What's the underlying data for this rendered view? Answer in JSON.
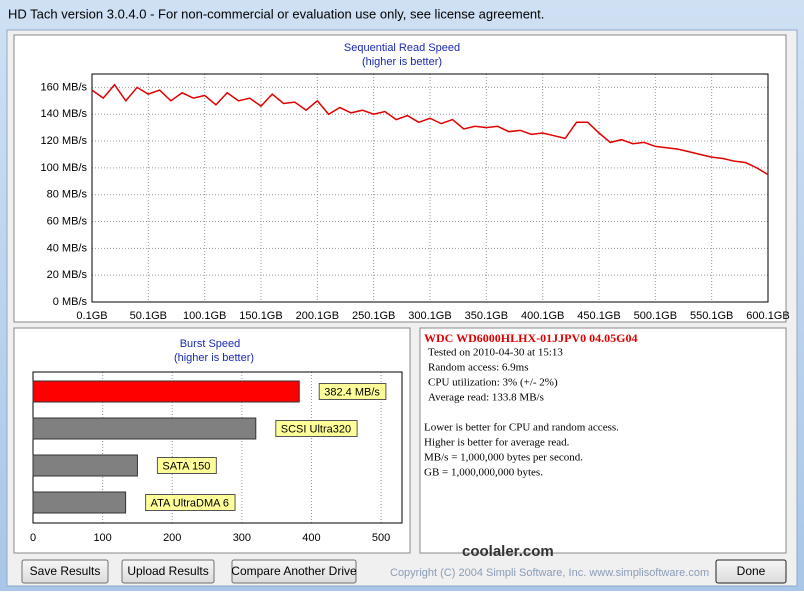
{
  "window": {
    "title": "HD Tach version 3.0.4.0  - For non-commercial or evaluation use only, see license agreement."
  },
  "chart_data": [
    {
      "type": "line",
      "title": "Sequential Read Speed",
      "subtitle": "(higher is better)",
      "x": [
        0.1,
        10.1,
        20.1,
        30.1,
        40.1,
        50.1,
        60.1,
        70.1,
        80.1,
        90.1,
        100.1,
        110.1,
        120.1,
        130.1,
        140.1,
        150.1,
        160.1,
        170.1,
        180.1,
        190.1,
        200.1,
        210.1,
        220.1,
        230.1,
        240.1,
        250.1,
        260.1,
        270.1,
        280.1,
        290.1,
        300.1,
        310.1,
        320.1,
        330.1,
        340.1,
        350.1,
        360.1,
        370.1,
        380.1,
        390.1,
        400.1,
        410.1,
        420.1,
        430.1,
        440.1,
        450.1,
        460.1,
        470.1,
        480.1,
        490.1,
        500.1,
        510.1,
        520.1,
        530.1,
        540.1,
        550.1,
        560.1,
        570.1,
        580.1,
        590.1,
        600.1
      ],
      "series": [
        {
          "color": "#e00000",
          "values": [
            158,
            152,
            162,
            150,
            160,
            155,
            158,
            150,
            156,
            152,
            154,
            147,
            156,
            150,
            152,
            146,
            155,
            148,
            149,
            143,
            150,
            140,
            145,
            141,
            143,
            140,
            142,
            136,
            139,
            134,
            137,
            133,
            136,
            129,
            131,
            130,
            131,
            127,
            128,
            125,
            126,
            124,
            122,
            134,
            134,
            126,
            119,
            121,
            118,
            119,
            116,
            115,
            114,
            112,
            110,
            108,
            107,
            105,
            104,
            100,
            95
          ]
        }
      ],
      "xlim": [
        0.1,
        600.1
      ],
      "xticks": [
        {
          "value": 0.1,
          "label": "0.1GB"
        },
        {
          "value": 50.1,
          "label": "50.1GB"
        },
        {
          "value": 100.1,
          "label": "100.1GB"
        },
        {
          "value": 150.1,
          "label": "150.1GB"
        },
        {
          "value": 200.1,
          "label": "200.1GB"
        },
        {
          "value": 250.1,
          "label": "250.1GB"
        },
        {
          "value": 300.1,
          "label": "300.1GB"
        },
        {
          "value": 350.1,
          "label": "350.1GB"
        },
        {
          "value": 400.1,
          "label": "400.1GB"
        },
        {
          "value": 450.1,
          "label": "450.1GB"
        },
        {
          "value": 500.1,
          "label": "500.1GB"
        },
        {
          "value": 550.1,
          "label": "550.1GB"
        },
        {
          "value": 600.1,
          "label": "600.1GB"
        }
      ],
      "ylim": [
        0,
        170
      ],
      "yticks": [
        {
          "value": 0,
          "label": "0 MB/s"
        },
        {
          "value": 20,
          "label": "20 MB/s"
        },
        {
          "value": 40,
          "label": "40 MB/s"
        },
        {
          "value": 60,
          "label": "60 MB/s"
        },
        {
          "value": 80,
          "label": "80 MB/s"
        },
        {
          "value": 100,
          "label": "100 MB/s"
        },
        {
          "value": 120,
          "label": "120 MB/s"
        },
        {
          "value": 140,
          "label": "140 MB/s"
        },
        {
          "value": 160,
          "label": "160 MB/s"
        }
      ],
      "grid": true
    },
    {
      "type": "hbar",
      "title": "Burst Speed",
      "subtitle": "(higher is better)",
      "categories": [
        null,
        "SCSI Ultra320",
        "SATA 150",
        "ATA UltraDMA 6"
      ],
      "values": [
        382.4,
        320,
        150,
        133
      ],
      "value_labels": [
        "382.4 MB/s",
        null,
        null,
        null
      ],
      "colors": [
        "#ff0000",
        "#808080",
        "#808080",
        "#808080"
      ],
      "xlim": [
        0,
        530
      ],
      "xticks": [
        0,
        100,
        200,
        300,
        400,
        500
      ],
      "grid": true
    }
  ],
  "info": {
    "drive": "WDC  WD6000HLHX-01JJPV0 04.05G04",
    "details": [
      "Tested on 2010-04-30 at 15:13",
      "Random access: 6.9ms",
      "CPU utilization: 3% (+/- 2%)",
      "Average read: 133.8 MB/s"
    ],
    "notes": [
      "Lower is better for CPU and random access.",
      "Higher is better for average read.",
      "MB/s = 1,000,000 bytes per second.",
      "GB = 1,000,000,000 bytes."
    ]
  },
  "watermark": "coolaler.com",
  "buttons": [
    "Save Results",
    "Upload Results",
    "Compare Another Drive",
    "Done"
  ],
  "copyright": "Copyright (C) 2004 Simpli Software, Inc. www.simplisoftware.com"
}
